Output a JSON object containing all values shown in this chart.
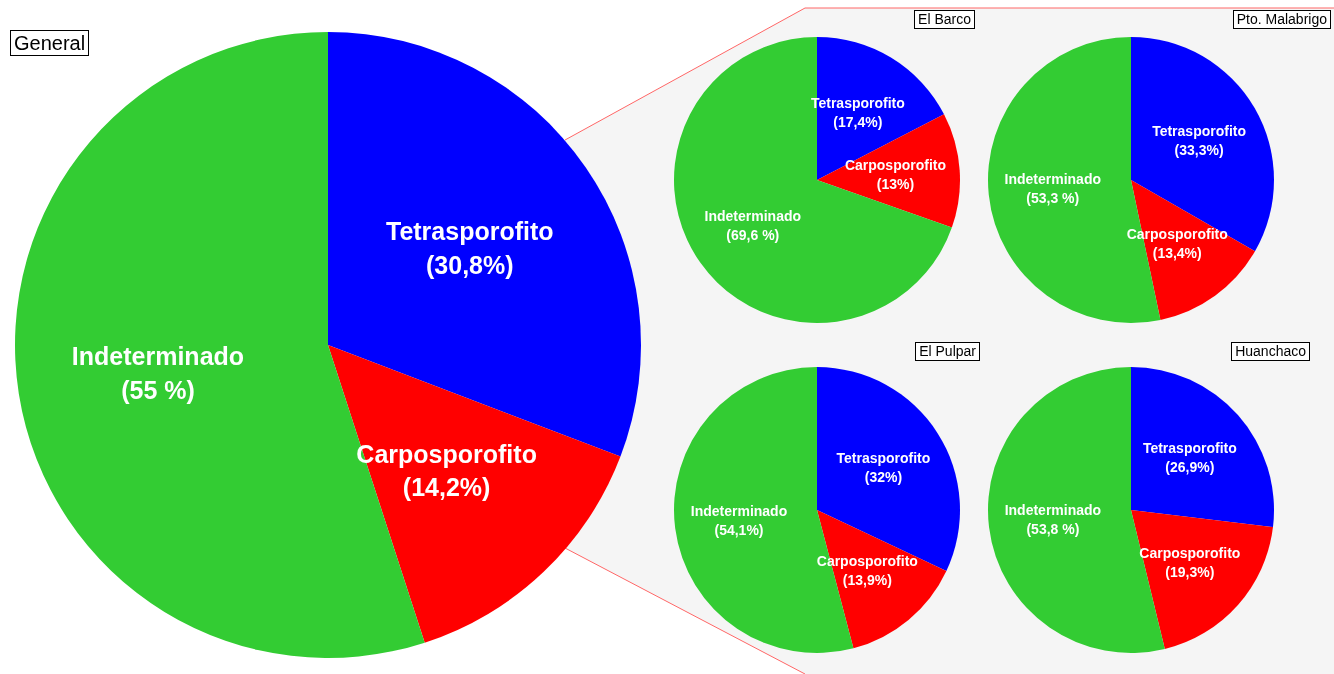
{
  "chart_data": [
    {
      "type": "pie",
      "title": "General",
      "categories": [
        "Tetrasporofito",
        "Carposporofito",
        "Indeterminado"
      ],
      "values": [
        30.8,
        14.2,
        55
      ],
      "colors": [
        "#0000ff",
        "#ff0000",
        "#33cc33"
      ],
      "value_labels": [
        "(30,8%)",
        "(14,2%)",
        "(55 %)"
      ]
    },
    {
      "type": "pie",
      "title": "El Barco",
      "categories": [
        "Tetrasporofito",
        "Carposporofito",
        "Indeterminado"
      ],
      "values": [
        17.4,
        13,
        69.6
      ],
      "colors": [
        "#0000ff",
        "#ff0000",
        "#33cc33"
      ],
      "value_labels": [
        "(17,4%)",
        "(13%)",
        "(69,6 %)"
      ]
    },
    {
      "type": "pie",
      "title": "Pto. Malabrigo",
      "categories": [
        "Tetrasporofito",
        "Carposporofito",
        "Indeterminado"
      ],
      "values": [
        33.3,
        13.4,
        53.3
      ],
      "colors": [
        "#0000ff",
        "#ff0000",
        "#33cc33"
      ],
      "value_labels": [
        "(33,3%)",
        "(13,4%)",
        "(53,3 %)"
      ]
    },
    {
      "type": "pie",
      "title": "El Pulpar",
      "categories": [
        "Tetrasporofito",
        "Carposporofito",
        "Indeterminado"
      ],
      "values": [
        32,
        13.9,
        54.1
      ],
      "colors": [
        "#0000ff",
        "#ff0000",
        "#33cc33"
      ],
      "value_labels": [
        "(32%)",
        "(13,9%)",
        "(54,1%)"
      ]
    },
    {
      "type": "pie",
      "title": "Huanchaco",
      "categories": [
        "Tetrasporofito",
        "Carposporofito",
        "Indeterminado"
      ],
      "values": [
        26.9,
        19.3,
        53.8
      ],
      "colors": [
        "#0000ff",
        "#ff0000",
        "#33cc33"
      ],
      "value_labels": [
        "(26,9%)",
        "(19,3%)",
        "(53,8 %)"
      ]
    }
  ]
}
